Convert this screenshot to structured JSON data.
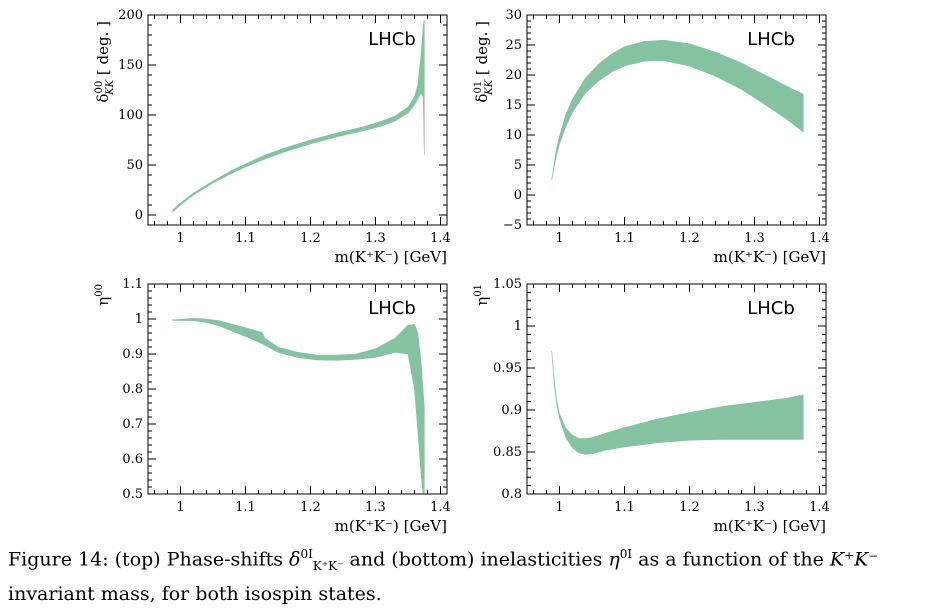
{
  "chart_data": [
    {
      "type": "area",
      "id": "p00",
      "title": "",
      "watermark": "LHCb",
      "xlabel": "m(K⁺K⁻) [GeV]",
      "ylabel": "δ00KK [ deg. ]",
      "xlim": [
        0.95,
        1.41
      ],
      "ylim": [
        -10,
        200
      ],
      "xticks": [
        "1",
        "1.1",
        "1.2",
        "1.3",
        "1.4"
      ],
      "yticks": [
        "0",
        "50",
        "100",
        "150",
        "200"
      ],
      "band": {
        "x": [
          0.988,
          1.0,
          1.02,
          1.05,
          1.08,
          1.1,
          1.13,
          1.16,
          1.2,
          1.24,
          1.28,
          1.31,
          1.33,
          1.35,
          1.36,
          1.365,
          1.37,
          1.3735,
          1.375
        ],
        "lower": [
          3,
          10,
          20,
          32,
          42,
          48,
          56,
          63,
          71,
          78,
          84,
          89,
          94,
          102,
          110,
          116,
          122,
          118,
          60
        ],
        "upper": [
          5,
          12,
          22,
          34,
          45,
          51,
          60,
          67,
          75,
          82,
          88,
          94,
          99,
          108,
          118,
          130,
          160,
          190,
          195
        ]
      }
    },
    {
      "type": "area",
      "id": "p01",
      "title": "",
      "watermark": "LHCb",
      "xlabel": "m(K⁺K⁻) [GeV]",
      "ylabel": "δ01KK [ deg. ]",
      "xlim": [
        0.95,
        1.41
      ],
      "ylim": [
        -5,
        30
      ],
      "xticks": [
        "1",
        "1.1",
        "1.2",
        "1.3",
        "1.4"
      ],
      "yticks": [
        "−5",
        "0",
        "5",
        "10",
        "15",
        "20",
        "25",
        "30"
      ],
      "band": {
        "x": [
          0.988,
          0.995,
          1.0,
          1.01,
          1.02,
          1.04,
          1.06,
          1.08,
          1.1,
          1.13,
          1.16,
          1.2,
          1.24,
          1.28,
          1.32,
          1.35,
          1.375
        ],
        "lower": [
          2.5,
          6.5,
          8.5,
          11.5,
          13.8,
          17.0,
          19.0,
          20.5,
          21.5,
          22.3,
          22.4,
          21.5,
          19.8,
          17.6,
          14.8,
          12.6,
          10.5
        ],
        "upper": [
          2.5,
          7.5,
          9.8,
          13.5,
          16.0,
          19.5,
          21.8,
          23.5,
          24.7,
          25.6,
          25.8,
          25.2,
          23.8,
          22.0,
          19.8,
          18.1,
          16.8
        ]
      }
    },
    {
      "type": "area",
      "id": "e00",
      "title": "",
      "watermark": "LHCb",
      "xlabel": "m(K⁺K⁻) [GeV]",
      "ylabel": "η00",
      "xlim": [
        0.95,
        1.41
      ],
      "ylim": [
        0.5,
        1.1
      ],
      "xticks": [
        "1",
        "1.1",
        "1.2",
        "1.3",
        "1.4"
      ],
      "yticks": [
        "0.5",
        "0.6",
        "0.7",
        "0.8",
        "0.9",
        "1",
        "1.1"
      ],
      "band": {
        "x": [
          0.988,
          1.0,
          1.02,
          1.04,
          1.06,
          1.08,
          1.1,
          1.125,
          1.13,
          1.15,
          1.18,
          1.21,
          1.24,
          1.27,
          1.3,
          1.33,
          1.35,
          1.36,
          1.365,
          1.37,
          1.373,
          1.375
        ],
        "lower": [
          0.996,
          0.996,
          0.995,
          0.99,
          0.98,
          0.965,
          0.95,
          0.93,
          0.925,
          0.905,
          0.89,
          0.883,
          0.882,
          0.885,
          0.89,
          0.905,
          0.9,
          0.8,
          0.68,
          0.56,
          0.5,
          0.5
        ],
        "upper": [
          0.998,
          0.999,
          1.002,
          1.0,
          0.995,
          0.985,
          0.975,
          0.962,
          0.945,
          0.92,
          0.905,
          0.897,
          0.897,
          0.9,
          0.915,
          0.945,
          0.982,
          0.985,
          0.96,
          0.88,
          0.8,
          0.75
        ]
      }
    },
    {
      "type": "area",
      "id": "e01",
      "title": "",
      "watermark": "LHCb",
      "xlabel": "m(K⁺K⁻) [GeV]",
      "ylabel": "η01",
      "xlim": [
        0.95,
        1.41
      ],
      "ylim": [
        0.8,
        1.05
      ],
      "xticks": [
        "1",
        "1.1",
        "1.2",
        "1.3",
        "1.4"
      ],
      "yticks": [
        "0.8",
        "0.85",
        "0.9",
        "0.95",
        "1",
        "1.05"
      ],
      "band": {
        "x": [
          0.988,
          0.992,
          0.996,
          1.0,
          1.01,
          1.02,
          1.03,
          1.04,
          1.05,
          1.07,
          1.1,
          1.15,
          1.2,
          1.25,
          1.3,
          1.35,
          1.375
        ],
        "lower": [
          0.97,
          0.93,
          0.905,
          0.89,
          0.867,
          0.855,
          0.849,
          0.847,
          0.848,
          0.852,
          0.856,
          0.861,
          0.864,
          0.865,
          0.865,
          0.865,
          0.865
        ],
        "upper": [
          0.97,
          0.935,
          0.91,
          0.895,
          0.878,
          0.87,
          0.866,
          0.866,
          0.867,
          0.872,
          0.879,
          0.889,
          0.897,
          0.904,
          0.909,
          0.914,
          0.918
        ]
      }
    }
  ],
  "colors": {
    "band": "#85c2a2"
  },
  "caption": {
    "prefix": "Figure 14: (top) Phase-shifts ",
    "delta_sym": "δ",
    "delta_sup": "0I",
    "delta_sub": "K⁺K⁻",
    "mid": " and (bottom) inelasticities ",
    "eta_sym": "η",
    "eta_sup": "0I",
    "tail": " as a function of the ",
    "kk": "K⁺K⁻",
    "line2": "invariant mass, for both isospin states."
  }
}
